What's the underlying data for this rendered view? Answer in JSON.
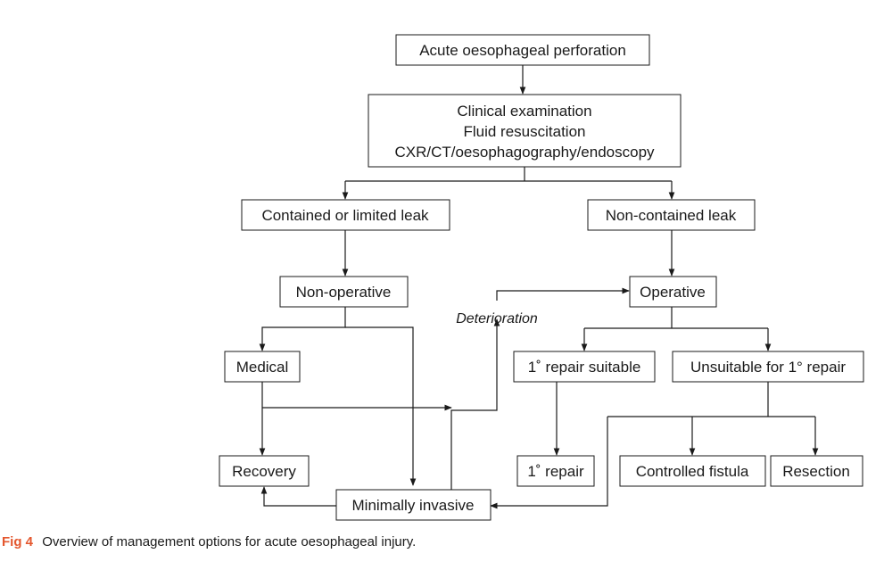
{
  "nodes": {
    "perforation": "Acute oesophageal perforation",
    "assessment": [
      "Clinical examination",
      "Fluid resuscitation",
      "CXR/CT/oesophagography/endoscopy"
    ],
    "contained": "Contained or limited leak",
    "noncontained": "Non-contained leak",
    "nonoperative": "Non-operative",
    "operative": "Operative",
    "medical": "Medical",
    "repair_suitable": "1˚ repair suitable",
    "unsuitable": "Unsuitable for 1° repair",
    "recovery": "Recovery",
    "repair": "1˚ repair",
    "fistula": "Controlled fistula",
    "resection": "Resection",
    "minimally_invasive": "Minimally invasive"
  },
  "edge_labels": {
    "deterioration": "Deterioration"
  },
  "caption": {
    "figure": "Fig 4",
    "text": "Overview of management options for acute oesophageal injury."
  },
  "colors": {
    "figure_label": "#e4572e",
    "line": "#1a1a1a"
  }
}
